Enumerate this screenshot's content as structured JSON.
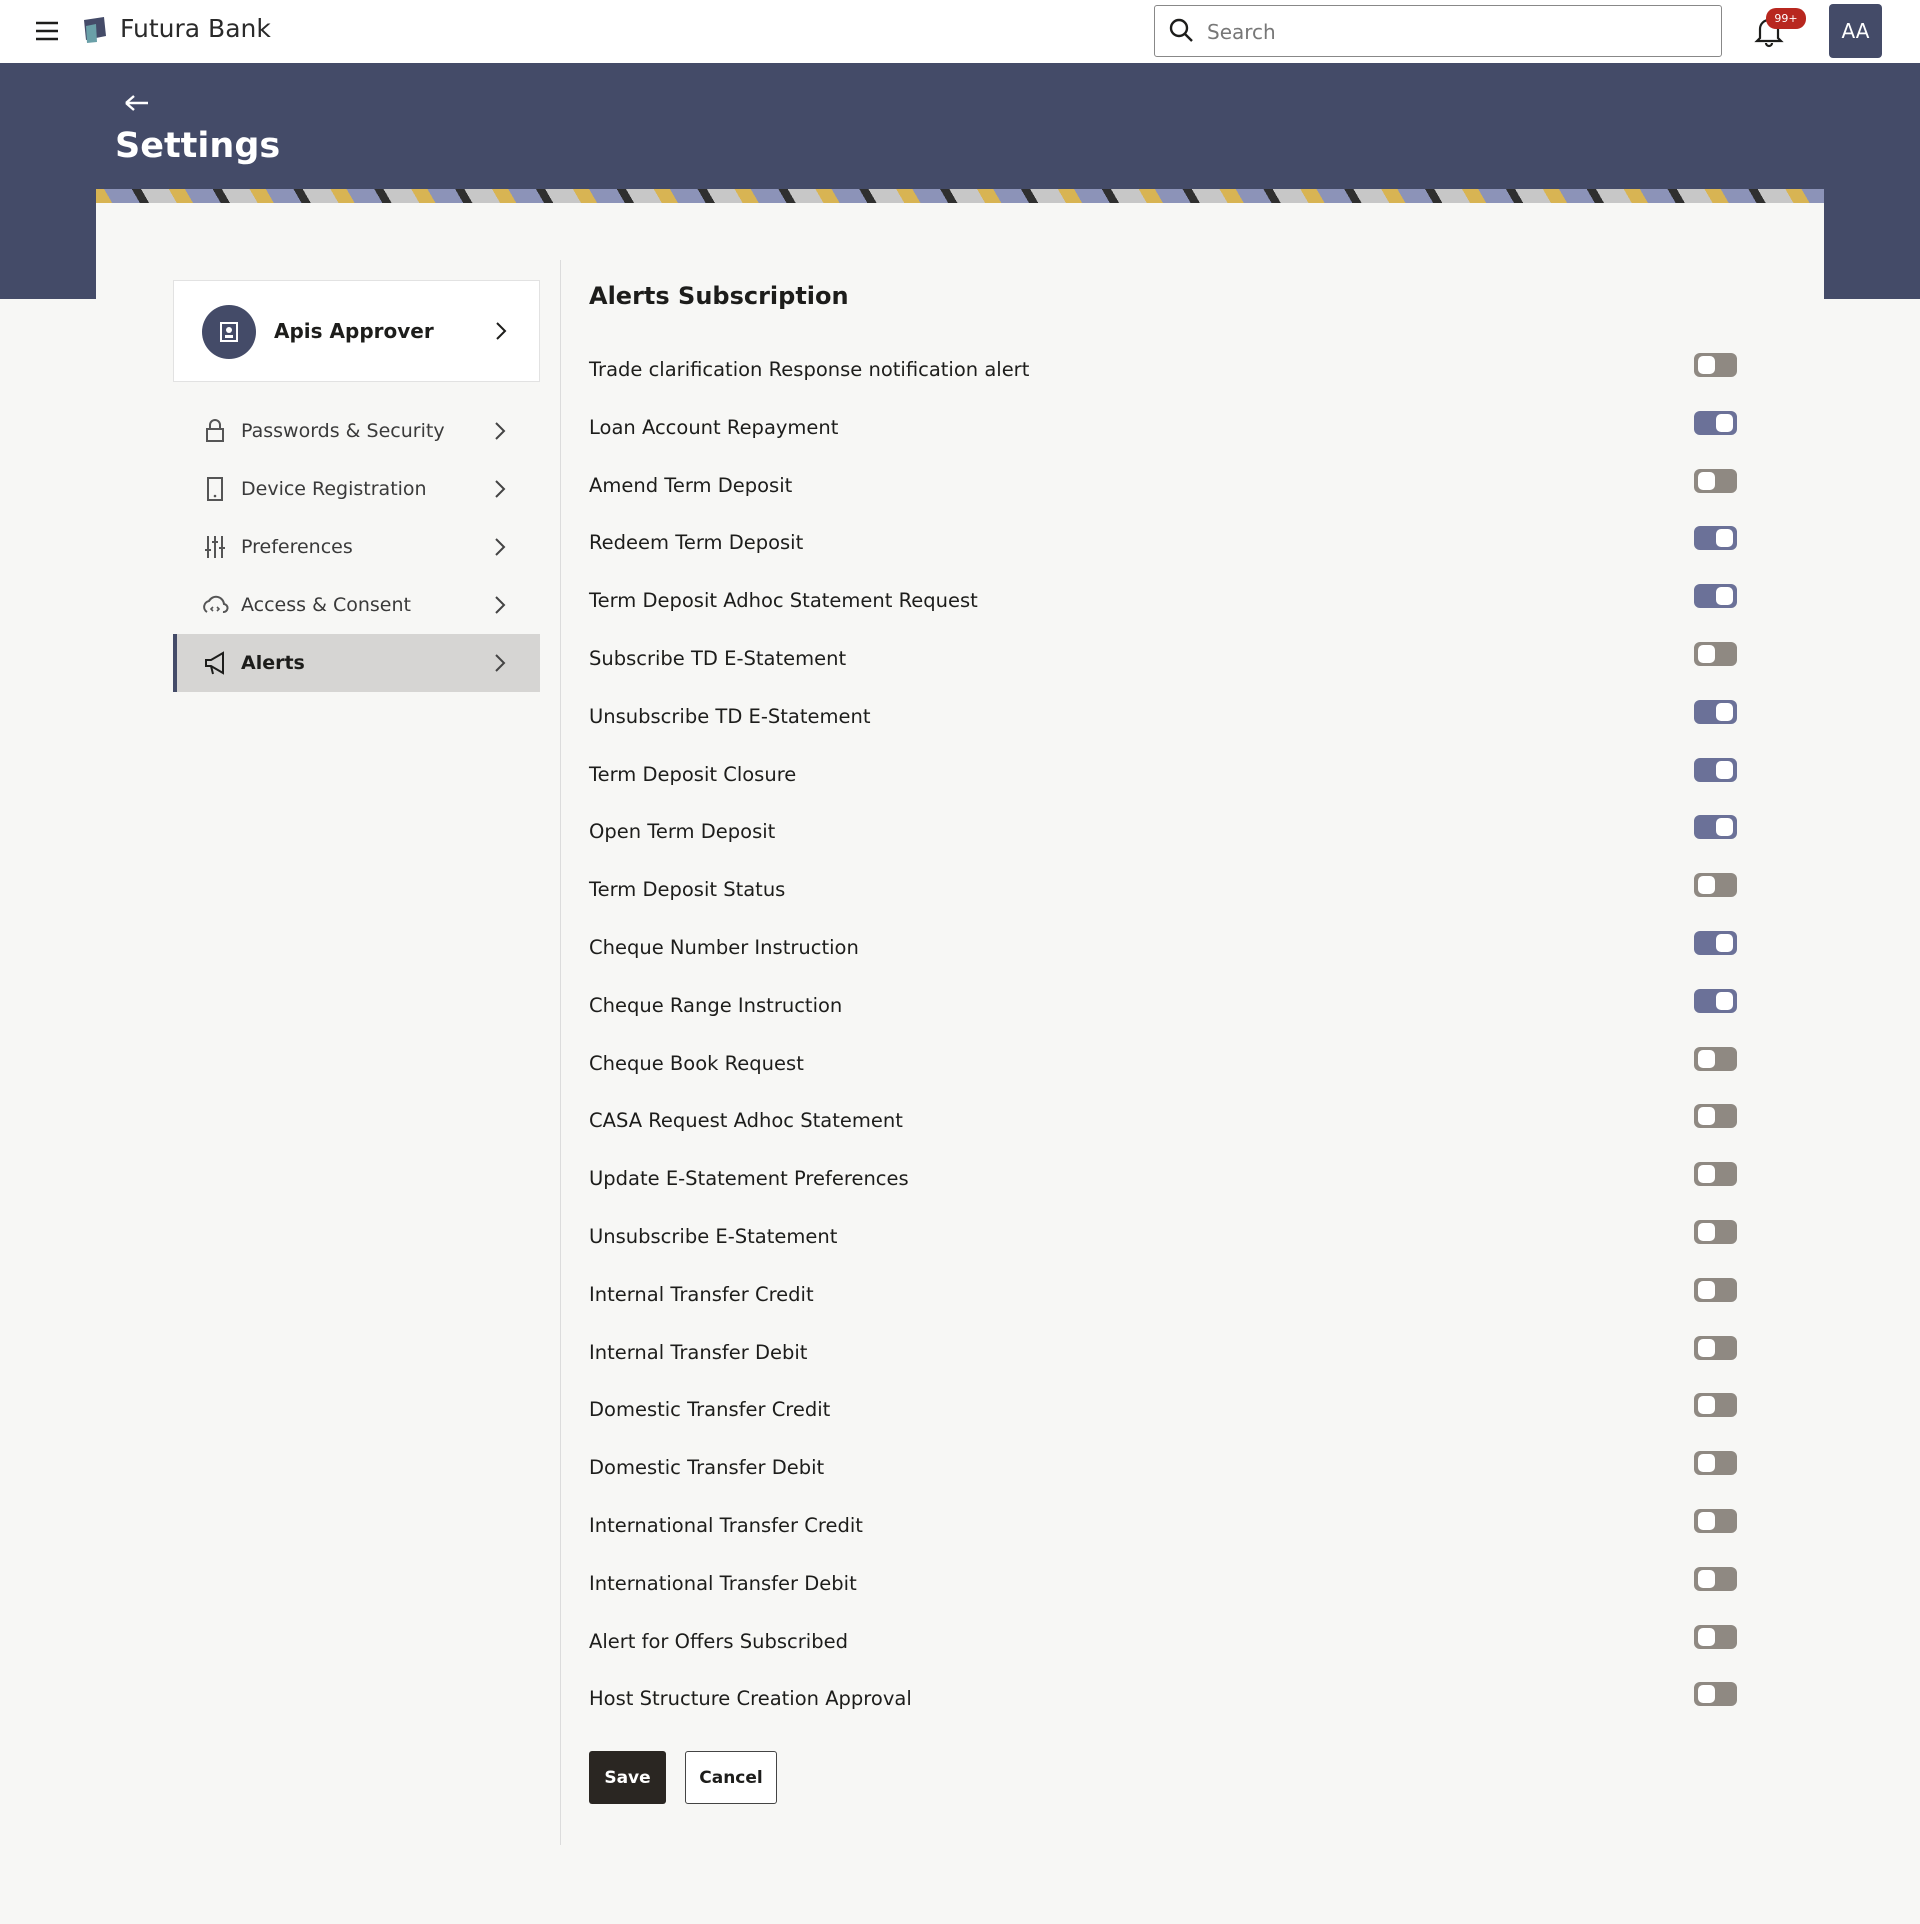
{
  "header": {
    "brand": "Futura Bank",
    "search_placeholder": "Search",
    "notification_badge": "99+",
    "avatar": "AA"
  },
  "page": {
    "title": "Settings"
  },
  "sidebar": {
    "profile": "Apis Approver",
    "menu": [
      {
        "label": "Passwords & Security",
        "selected": false
      },
      {
        "label": "Device Registration",
        "selected": false
      },
      {
        "label": "Preferences",
        "selected": false
      },
      {
        "label": "Access & Consent",
        "selected": false
      },
      {
        "label": "Alerts",
        "selected": true
      }
    ]
  },
  "alerts": {
    "title": "Alerts Subscription",
    "items": [
      {
        "label": "Trade clarification Response notification alert",
        "on": false
      },
      {
        "label": "Loan Account Repayment",
        "on": true
      },
      {
        "label": "Amend Term Deposit",
        "on": false
      },
      {
        "label": "Redeem Term Deposit",
        "on": true
      },
      {
        "label": "Term Deposit Adhoc Statement Request",
        "on": true
      },
      {
        "label": "Subscribe TD E-Statement",
        "on": false
      },
      {
        "label": "Unsubscribe TD E-Statement",
        "on": true
      },
      {
        "label": "Term Deposit Closure",
        "on": true
      },
      {
        "label": "Open Term Deposit",
        "on": true
      },
      {
        "label": "Term Deposit Status",
        "on": false
      },
      {
        "label": "Cheque Number Instruction",
        "on": true
      },
      {
        "label": "Cheque Range Instruction",
        "on": true
      },
      {
        "label": "Cheque Book Request",
        "on": false
      },
      {
        "label": "CASA Request Adhoc Statement",
        "on": false
      },
      {
        "label": "Update E-Statement Preferences",
        "on": false
      },
      {
        "label": "Unsubscribe E-Statement",
        "on": false
      },
      {
        "label": "Internal Transfer Credit",
        "on": false
      },
      {
        "label": "Internal Transfer Debit",
        "on": false
      },
      {
        "label": "Domestic Transfer Credit",
        "on": false
      },
      {
        "label": "Domestic Transfer Debit",
        "on": false
      },
      {
        "label": "International Transfer Credit",
        "on": false
      },
      {
        "label": "International Transfer Debit",
        "on": false
      },
      {
        "label": "Alert for Offers Subscribed",
        "on": false
      },
      {
        "label": "Host Structure Creation Approval",
        "on": false
      }
    ],
    "save": "Save",
    "cancel": "Cancel"
  }
}
